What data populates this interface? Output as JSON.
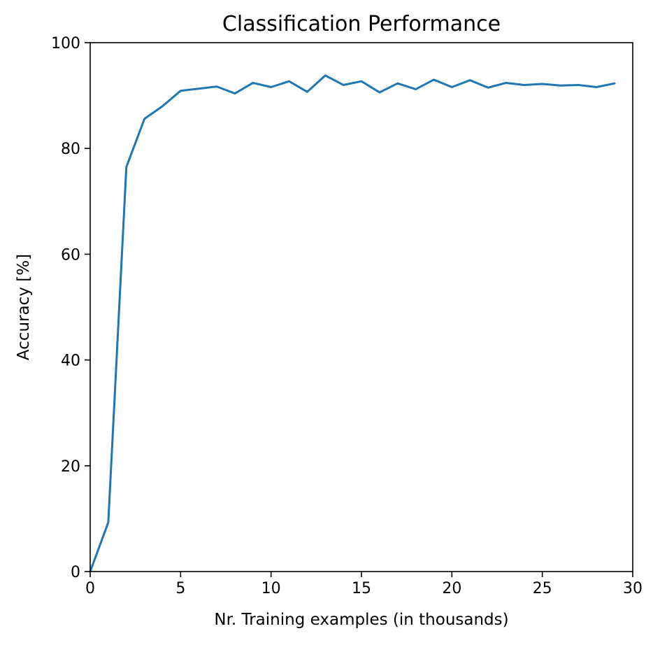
{
  "chart_data": {
    "type": "line",
    "title": "Classification Performance",
    "xlabel": "Nr. Training examples (in thousands)",
    "ylabel": "Accuracy [%]",
    "xlim": [
      0,
      30
    ],
    "ylim": [
      0,
      100
    ],
    "xticks": [
      0,
      5,
      10,
      15,
      20,
      25,
      30
    ],
    "yticks": [
      0,
      20,
      40,
      60,
      80,
      100
    ],
    "grid": false,
    "legend": "none",
    "series": [
      {
        "color": "#1f77b4",
        "x": [
          0,
          1,
          2,
          3,
          4,
          5,
          6,
          7,
          8,
          9,
          10,
          11,
          12,
          13,
          14,
          15,
          16,
          17,
          18,
          19,
          20,
          21,
          22,
          23,
          24,
          25,
          26,
          27,
          28,
          29
        ],
        "y": [
          0,
          9.3,
          76.5,
          85.6,
          88.0,
          90.9,
          91.3,
          91.7,
          90.4,
          92.4,
          91.6,
          92.7,
          90.7,
          93.8,
          92.0,
          92.7,
          90.6,
          92.3,
          91.2,
          93.0,
          91.6,
          92.9,
          91.5,
          92.4,
          92.0,
          92.2,
          91.9,
          92.0,
          91.6,
          92.3
        ]
      }
    ]
  }
}
